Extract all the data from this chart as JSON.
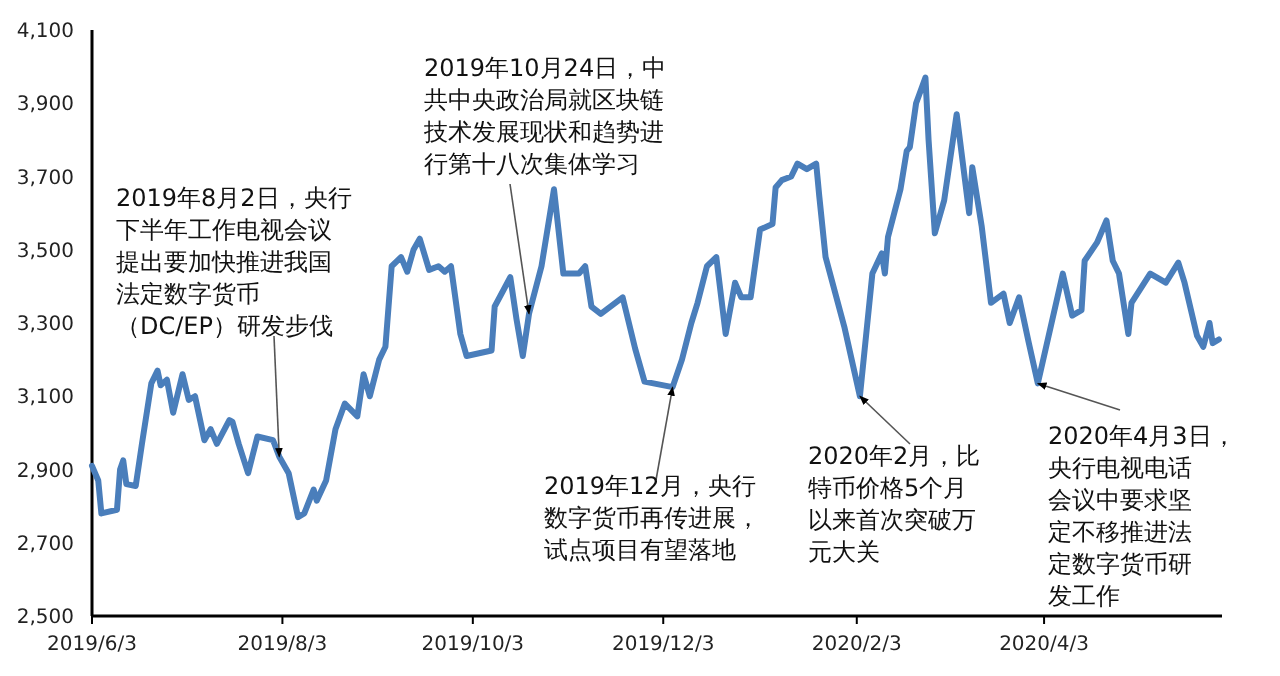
{
  "chart_data": {
    "type": "line",
    "x": [
      "2019-06-03",
      "2019-06-05",
      "2019-06-06",
      "2019-06-11",
      "2019-06-12",
      "2019-06-13",
      "2019-06-14",
      "2019-06-17",
      "2019-06-19",
      "2019-06-22",
      "2019-06-24",
      "2019-06-25",
      "2019-06-27",
      "2019-06-29",
      "2019-07-02",
      "2019-07-04",
      "2019-07-06",
      "2019-07-09",
      "2019-07-11",
      "2019-07-13",
      "2019-07-17",
      "2019-07-18",
      "2019-07-20",
      "2019-07-23",
      "2019-07-26",
      "2019-07-31",
      "2019-08-02",
      "2019-08-05",
      "2019-08-08",
      "2019-08-10",
      "2019-08-13",
      "2019-08-14",
      "2019-08-17",
      "2019-08-20",
      "2019-08-23",
      "2019-08-27",
      "2019-08-29",
      "2019-08-31",
      "2019-09-03",
      "2019-09-05",
      "2019-09-07",
      "2019-09-10",
      "2019-09-12",
      "2019-09-14",
      "2019-09-16",
      "2019-09-19",
      "2019-09-22",
      "2019-09-24",
      "2019-09-26",
      "2019-09-29",
      "2019-10-01",
      "2019-10-09",
      "2019-10-10",
      "2019-10-15",
      "2019-10-17",
      "2019-10-19",
      "2019-10-21",
      "2019-10-25",
      "2019-10-29",
      "2019-11-01",
      "2019-11-06",
      "2019-11-08",
      "2019-11-10",
      "2019-11-13",
      "2019-11-20",
      "2019-11-24",
      "2019-11-27",
      "2019-12-06",
      "2019-12-09",
      "2019-12-12",
      "2019-12-14",
      "2019-12-17",
      "2019-12-20",
      "2019-12-23",
      "2019-12-26",
      "2019-12-28",
      "2019-12-31",
      "2020-01-03",
      "2020-01-07",
      "2020-01-08",
      "2020-01-10",
      "2020-01-13",
      "2020-01-15",
      "2020-01-18",
      "2020-01-21",
      "2020-01-22",
      "2020-01-24",
      "2020-01-30",
      "2020-02-04",
      "2020-02-08",
      "2020-02-11",
      "2020-02-12",
      "2020-02-13",
      "2020-02-17",
      "2020-02-19",
      "2020-02-20",
      "2020-02-22",
      "2020-02-25",
      "2020-02-26",
      "2020-02-28",
      "2020-03-02",
      "2020-03-06",
      "2020-03-10",
      "2020-03-11",
      "2020-03-14",
      "2020-03-17",
      "2020-03-21",
      "2020-03-23",
      "2020-03-26",
      "2020-03-29",
      "2020-04-01",
      "2020-04-09",
      "2020-04-12",
      "2020-04-15",
      "2020-04-16",
      "2020-04-20",
      "2020-04-23",
      "2020-04-25",
      "2020-04-27",
      "2020-04-30",
      "2020-05-01",
      "2020-05-07",
      "2020-05-12",
      "2020-05-16",
      "2020-05-18",
      "2020-05-22",
      "2020-05-24",
      "2020-05-26",
      "2020-05-27",
      "2020-05-29"
    ],
    "series": [
      {
        "color": "#4a7ebb",
        "values": [
          2910,
          2870,
          2780,
          2790,
          2900,
          2925,
          2860,
          2855,
          2970,
          3135,
          3170,
          3130,
          3145,
          3055,
          3160,
          3090,
          3100,
          2980,
          3010,
          2970,
          3035,
          3030,
          2970,
          2890,
          2990,
          2980,
          2935,
          2890,
          2770,
          2780,
          2845,
          2815,
          2870,
          3010,
          3080,
          3045,
          3160,
          3100,
          3200,
          3235,
          3455,
          3480,
          3440,
          3500,
          3530,
          3445,
          3455,
          3440,
          3455,
          3270,
          3210,
          3225,
          3345,
          3425,
          3310,
          3210,
          3325,
          3455,
          3665,
          3435,
          3435,
          3455,
          3345,
          3325,
          3370,
          3230,
          3140,
          3125,
          3200,
          3300,
          3355,
          3455,
          3480,
          3270,
          3410,
          3370,
          3370,
          3555,
          3570,
          3670,
          3690,
          3700,
          3735,
          3720,
          3735,
          3645,
          3480,
          3290,
          3100,
          3435,
          3490,
          3435,
          3535,
          3665,
          3770,
          3780,
          3900,
          3970,
          3800,
          3545,
          3635,
          3870,
          3600,
          3725,
          3565,
          3355,
          3380,
          3300,
          3370,
          3250,
          3135,
          3435,
          3320,
          3335,
          3470,
          3520,
          3580,
          3470,
          3435,
          3270,
          3355,
          3435,
          3410,
          3465,
          3410,
          3265,
          3235,
          3300,
          3245,
          3255
        ]
      }
    ],
    "xlim": [
      "2019-06-03",
      "2020-05-30"
    ],
    "xticks": [
      {
        "value": "2019-06-03",
        "label": "2019/6/3"
      },
      {
        "value": "2019-08-03",
        "label": "2019/8/3"
      },
      {
        "value": "2019-10-03",
        "label": "2019/10/3"
      },
      {
        "value": "2019-12-03",
        "label": "2019/12/3"
      },
      {
        "value": "2020-02-03",
        "label": "2020/2/3"
      },
      {
        "value": "2020-04-03",
        "label": "2020/4/3"
      }
    ],
    "ylim": [
      2500,
      4100
    ],
    "yticks": [
      {
        "value": 2500,
        "label": "2,500"
      },
      {
        "value": 2700,
        "label": "2,700"
      },
      {
        "value": 2900,
        "label": "2,900"
      },
      {
        "value": 3100,
        "label": "3,100"
      },
      {
        "value": 3300,
        "label": "3,300"
      },
      {
        "value": 3500,
        "label": "3,500"
      },
      {
        "value": 3700,
        "label": "3,700"
      },
      {
        "value": 3900,
        "label": "3,900"
      },
      {
        "value": 4100,
        "label": "4,100"
      }
    ],
    "grid": false,
    "marker": "none",
    "line_style": "solid",
    "annotations": [
      {
        "text": "2019年8月2日，央行下半年工作电视会议提出要加快推进我国法定数字货币（DC/EP）研发步伐",
        "x": "2019-08-02",
        "y": 2935
      },
      {
        "text": "2019年10月24日，中共中央政治局就区块链技术发展现状和趋势进行第十八次集体学习",
        "x": "2019-10-21",
        "y": 3325
      },
      {
        "text": "2019年12月，央行数字货币再传进展，试点项目有望落地",
        "x": "2019-12-06",
        "y": 3125
      },
      {
        "text": "2020年2月，比特币价格5个月以来首次突破万元大关",
        "x": "2020-02-04",
        "y": 3100
      },
      {
        "text": "2020年4月3日，央行电视电话会议中要求坚定不移推进法定数字货币研发工作",
        "x": "2020-04-01",
        "y": 3135
      }
    ]
  }
}
